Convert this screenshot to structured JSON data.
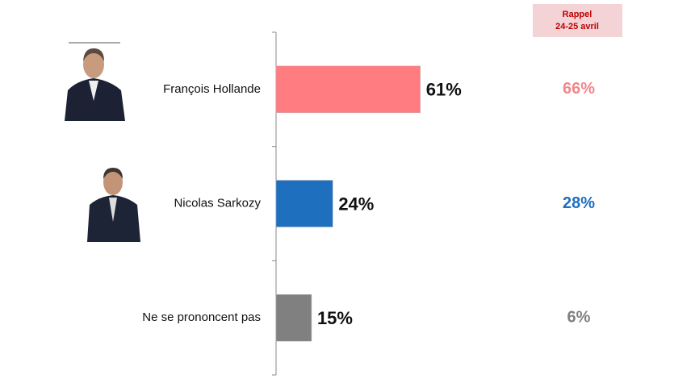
{
  "chart_data": {
    "type": "bar",
    "categories": [
      "François Hollande",
      "Nicolas Sarkozy",
      "Ne se prononcent pas"
    ],
    "values": [
      61,
      24,
      15
    ],
    "value_labels": [
      "61%",
      "24%",
      "15%"
    ],
    "colors": [
      "#ff7c80",
      "#1f6fbf",
      "#808080"
    ],
    "recall_title": [
      "Rappel",
      "24-25 avril"
    ],
    "recall_values": [
      66,
      28,
      6
    ],
    "recall_value_labels": [
      "66%",
      "28%",
      "6%"
    ],
    "recall_colors": [
      "#f0888a",
      "#1f6fbf",
      "#808080"
    ]
  }
}
